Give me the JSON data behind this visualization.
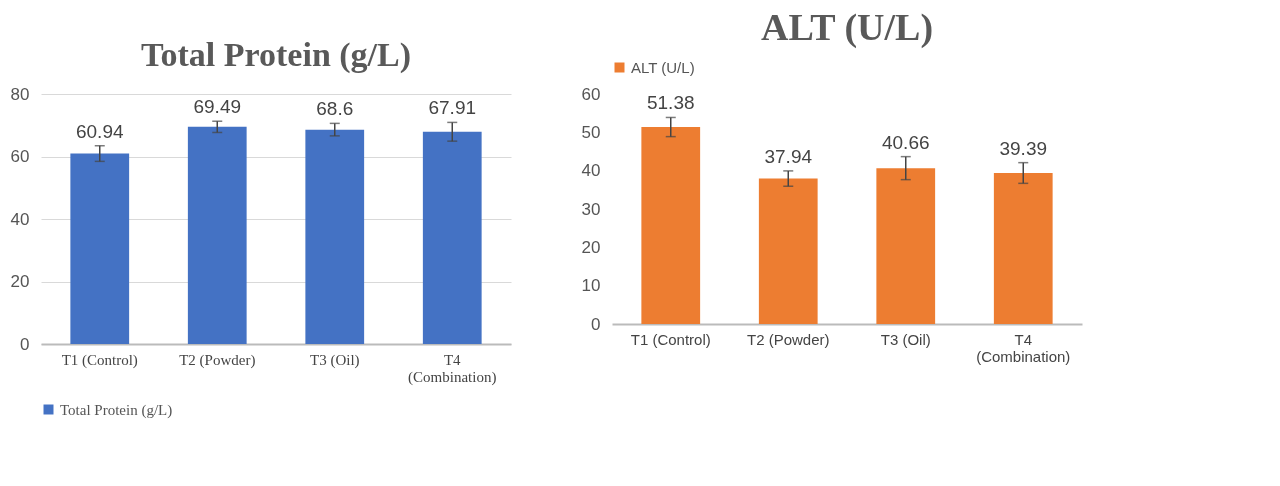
{
  "chart_data": [
    {
      "type": "bar",
      "title": "Total Protein (g/L)",
      "categories": [
        "T1 (Control)",
        "T2 (Powder)",
        "T3 (Oil)",
        "T4 (Combination)"
      ],
      "series": [
        {
          "name": "Total Protein (g/L)",
          "color": "#4472c4",
          "values": [
            60.94,
            69.49,
            68.6,
            67.91
          ],
          "errors": [
            2.5,
            1.8,
            2.0,
            3.0
          ]
        }
      ],
      "ylim": [
        0,
        80
      ],
      "yticks": [
        0,
        20,
        40,
        60,
        80
      ],
      "grid": "y",
      "legend": "bottom",
      "data_labels": true
    },
    {
      "type": "bar",
      "title": "ALT (U/L)",
      "categories": [
        "T1 (Control)",
        "T2 (Powder)",
        "T3 (Oil)",
        "T4 (Combination)"
      ],
      "series": [
        {
          "name": "ALT (U/L)",
          "color": "#ed7d31",
          "values": [
            51.38,
            37.94,
            40.66,
            39.39
          ],
          "errors": [
            2.5,
            2.0,
            3.0,
            2.7
          ]
        }
      ],
      "ylim": [
        0,
        60
      ],
      "yticks": [
        0,
        10,
        20,
        30,
        40,
        50,
        60
      ],
      "grid": false,
      "legend": "top",
      "data_labels": true
    }
  ]
}
